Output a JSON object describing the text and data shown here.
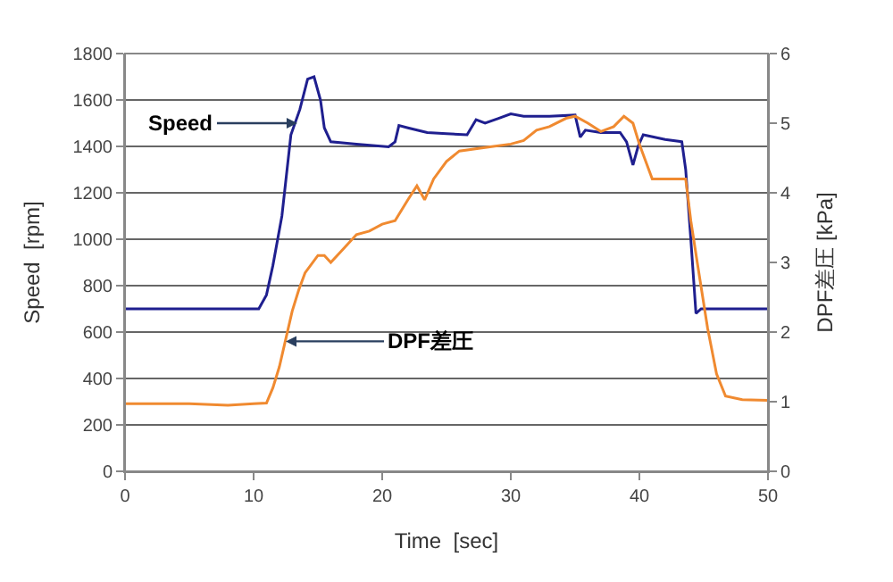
{
  "chart_data": {
    "type": "line",
    "xlabel": "Time  [sec]",
    "ylabel": "Speed  [rpm]",
    "y2label": "DPF差圧 [kPa]",
    "xlim": [
      0,
      50
    ],
    "xticks": [
      0,
      10,
      20,
      30,
      40,
      50
    ],
    "ylim": [
      0,
      1800
    ],
    "yticks": [
      0,
      200,
      400,
      600,
      800,
      1000,
      1200,
      1400,
      1600,
      1800
    ],
    "y2lim": [
      0,
      6
    ],
    "y2ticks": [
      0,
      1,
      2,
      3,
      4,
      5,
      6
    ],
    "grid": "y",
    "marker": "none",
    "line_style": "solid",
    "series": [
      {
        "color": "#1f1f8f",
        "x": [
          0,
          5,
          10.4,
          11,
          11.5,
          12.2,
          12.9,
          13.6,
          14.2,
          14.7,
          15.2,
          15.5,
          16,
          18,
          20.5,
          21,
          21.3,
          22,
          23.5,
          25,
          26.6,
          27.3,
          28,
          29,
          30,
          31,
          33,
          35,
          35.4,
          35.8,
          37,
          38.5,
          39,
          39.5,
          39.9,
          40.3,
          42,
          43.3,
          43.6,
          44,
          44.4,
          44.8,
          45.5,
          47,
          50
        ],
        "values": [
          700,
          700,
          700,
          760,
          887,
          1100,
          1450,
          1560,
          1690,
          1700,
          1600,
          1480,
          1420,
          1410,
          1398,
          1420,
          1490,
          1480,
          1460,
          1455,
          1450,
          1515,
          1500,
          1520,
          1540,
          1530,
          1530,
          1535,
          1440,
          1470,
          1460,
          1460,
          1420,
          1320,
          1400,
          1450,
          1430,
          1420,
          1300,
          1000,
          680,
          700,
          700,
          700,
          700
        ]
      },
      {
        "axis": "y2",
        "color": "#f08a30",
        "x": [
          0,
          5,
          8,
          10,
          11,
          11.5,
          12,
          12.5,
          13,
          13.5,
          14,
          15,
          15.5,
          16,
          17,
          18,
          19,
          20,
          21,
          22,
          22.7,
          23.3,
          24,
          25,
          26,
          28,
          30,
          31,
          32,
          33,
          34.3,
          35,
          36,
          37,
          38,
          38.8,
          39.5,
          40,
          41,
          42,
          43.6,
          44,
          44.5,
          45.3,
          46,
          46.7,
          48,
          50
        ],
        "values": [
          0.97,
          0.97,
          0.95,
          0.97,
          0.98,
          1.2,
          1.5,
          1.9,
          2.3,
          2.6,
          2.85,
          3.1,
          3.1,
          3.0,
          3.2,
          3.4,
          3.45,
          3.55,
          3.6,
          3.9,
          4.1,
          3.9,
          4.2,
          4.45,
          4.6,
          4.65,
          4.7,
          4.75,
          4.9,
          4.95,
          5.07,
          5.1,
          5.0,
          4.88,
          4.95,
          5.1,
          5.0,
          4.7,
          4.2,
          4.2,
          4.2,
          3.6,
          3.0,
          2.06,
          1.4,
          1.08,
          1.03,
          1.02
        ]
      }
    ],
    "annotations": [
      {
        "text": "Speed",
        "x": 13.4,
        "y": 1500
      },
      {
        "text": "DPF差圧",
        "x": 12.5,
        "y": 560
      }
    ]
  }
}
